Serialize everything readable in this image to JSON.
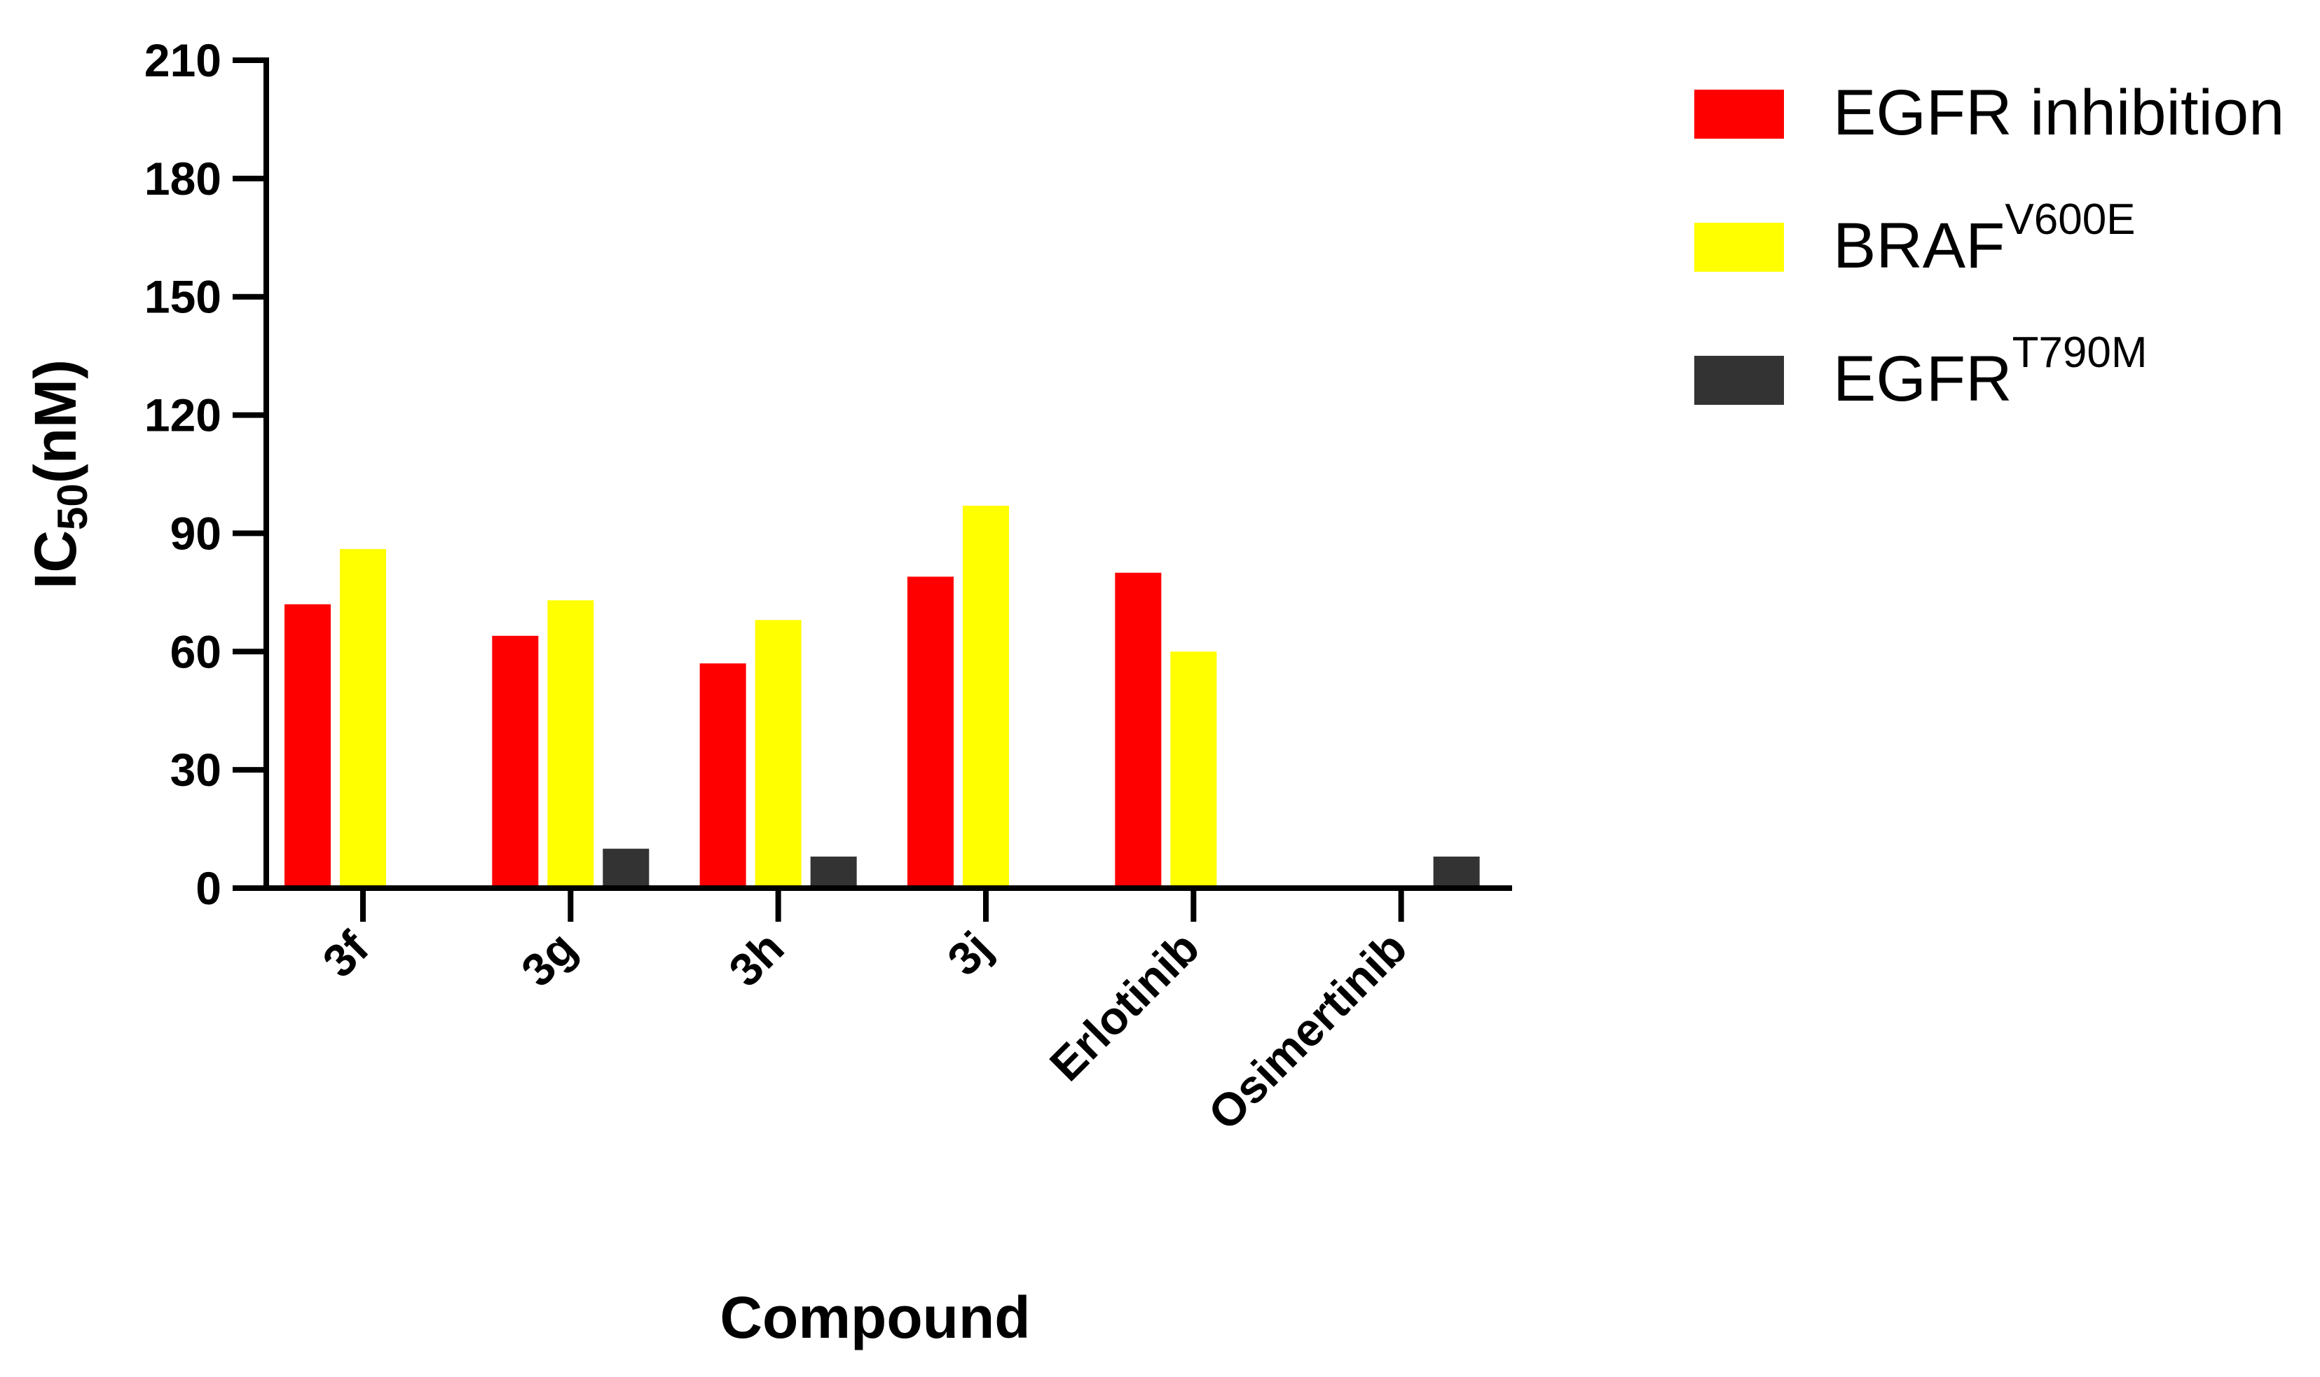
{
  "chart_data": {
    "type": "bar",
    "xlabel": "Compound",
    "ylabel": {
      "prefix": "IC",
      "sub": "50",
      "suffix": "(nM)"
    },
    "categories": [
      "3f",
      "3g",
      "3h",
      "3j",
      "Erlotinib",
      "Osimertinib"
    ],
    "ylim": [
      0,
      210
    ],
    "yticks": [
      "0",
      "30",
      "60",
      "90",
      "120",
      "150",
      "180",
      "210"
    ],
    "grid": false,
    "legend_position": "top-right",
    "series": [
      {
        "name": "EGFR inhibition",
        "sup": "",
        "color": "#ff0000",
        "values": [
          72,
          64,
          57,
          79,
          80,
          null
        ]
      },
      {
        "name": "BRAF",
        "sup": "V600E",
        "color": "#ffff00",
        "values": [
          86,
          73,
          68,
          97,
          60,
          null
        ]
      },
      {
        "name": "EGFR",
        "sup": "T790M",
        "color": "#333333",
        "values": [
          null,
          10,
          8,
          null,
          null,
          8
        ]
      }
    ]
  }
}
